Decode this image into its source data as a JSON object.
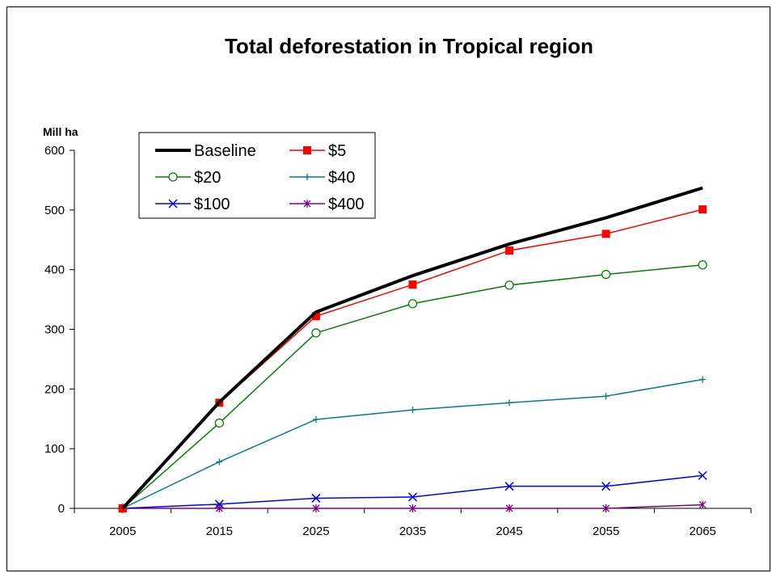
{
  "chart_data": {
    "type": "line",
    "title": "Total deforestation in Tropical region",
    "ylabel": "Mill ha",
    "xlabel": "",
    "categories": [
      "2005",
      "2015",
      "2025",
      "2035",
      "2045",
      "2055",
      "2065"
    ],
    "ylim": [
      0,
      600
    ],
    "yticks": [
      "0",
      "100",
      "200",
      "300",
      "400",
      "500",
      "600"
    ],
    "grid": false,
    "legend_position": "top-left",
    "series": [
      {
        "name": "Baseline",
        "values": [
          0,
          178,
          329,
          390,
          443,
          487,
          537
        ],
        "color": "#000000",
        "marker": "none",
        "width": 4
      },
      {
        "name": "$5",
        "values": [
          0,
          177,
          322,
          375,
          432,
          460,
          501
        ],
        "color": "#ff0000",
        "marker": "square",
        "width": 1.5
      },
      {
        "name": "$20",
        "values": [
          0,
          143,
          294,
          343,
          374,
          392,
          408
        ],
        "color": "#008000",
        "marker": "circle",
        "width": 1.5
      },
      {
        "name": "$40",
        "values": [
          0,
          78,
          149,
          165,
          177,
          188,
          216
        ],
        "color": "#008080",
        "marker": "plus",
        "width": 1.5
      },
      {
        "name": "$100",
        "values": [
          0,
          7,
          17,
          19,
          37,
          37,
          55
        ],
        "color": "#0000ff",
        "marker": "x",
        "width": 1.5
      },
      {
        "name": "$400",
        "values": [
          0,
          0,
          0,
          0,
          0,
          0,
          6
        ],
        "color": "#800080",
        "marker": "star",
        "width": 1.5
      }
    ]
  }
}
